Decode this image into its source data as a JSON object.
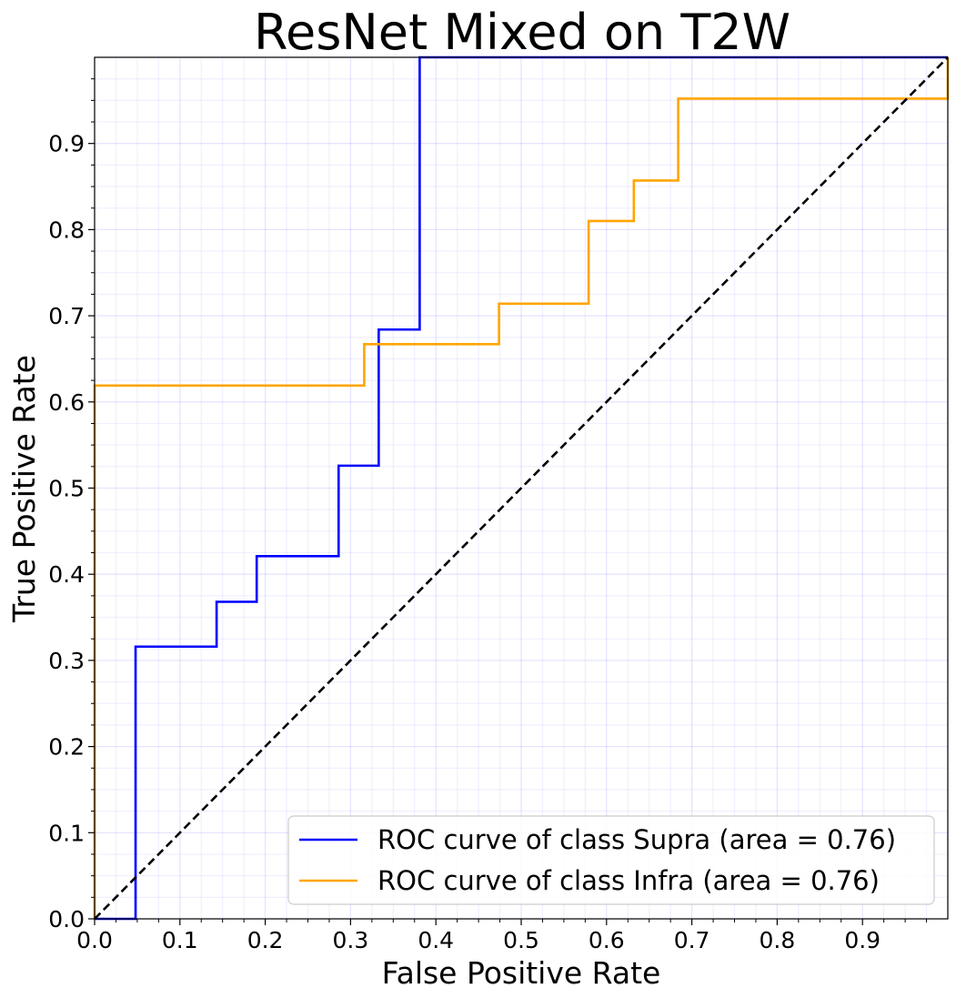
{
  "chart_data": {
    "type": "line",
    "title": "ResNet Mixed on T2W",
    "xlabel": "False Positive Rate",
    "ylabel": "True Positive Rate",
    "xlim": [
      0.0,
      1.0
    ],
    "ylim": [
      0.0,
      1.0
    ],
    "grid": true,
    "minor_grid": true,
    "x_ticks": [
      "0.0",
      "0.1",
      "0.2",
      "0.3",
      "0.4",
      "0.5",
      "0.6",
      "0.7",
      "0.8",
      "0.9"
    ],
    "y_ticks": [
      "0.0",
      "0.1",
      "0.2",
      "0.3",
      "0.4",
      "0.5",
      "0.6",
      "0.7",
      "0.8",
      "0.9"
    ],
    "legend_position": "lower-right",
    "series": [
      {
        "name": "ROC curve of class Supra (area = 0.76)",
        "color": "#0000ff",
        "style": "solid",
        "x": [
          0.0,
          0.048,
          0.048,
          0.143,
          0.143,
          0.19,
          0.19,
          0.286,
          0.286,
          0.333,
          0.333,
          0.381,
          0.381,
          1.0
        ],
        "y": [
          0.0,
          0.0,
          0.316,
          0.316,
          0.368,
          0.368,
          0.421,
          0.421,
          0.526,
          0.526,
          0.684,
          0.684,
          1.0,
          1.0
        ]
      },
      {
        "name": "ROC curve of class Infra (area = 0.76)",
        "color": "#ffa500",
        "style": "solid",
        "x": [
          0.0,
          0.0,
          0.316,
          0.316,
          0.474,
          0.474,
          0.579,
          0.579,
          0.632,
          0.632,
          0.684,
          0.684,
          1.0,
          1.0
        ],
        "y": [
          0.0,
          0.619,
          0.619,
          0.667,
          0.667,
          0.714,
          0.714,
          0.81,
          0.81,
          0.857,
          0.857,
          0.952,
          0.952,
          1.0
        ]
      },
      {
        "name": "",
        "color": "#000000",
        "style": "dashed",
        "x": [
          0.0,
          1.0
        ],
        "y": [
          0.0,
          1.0
        ]
      }
    ]
  }
}
